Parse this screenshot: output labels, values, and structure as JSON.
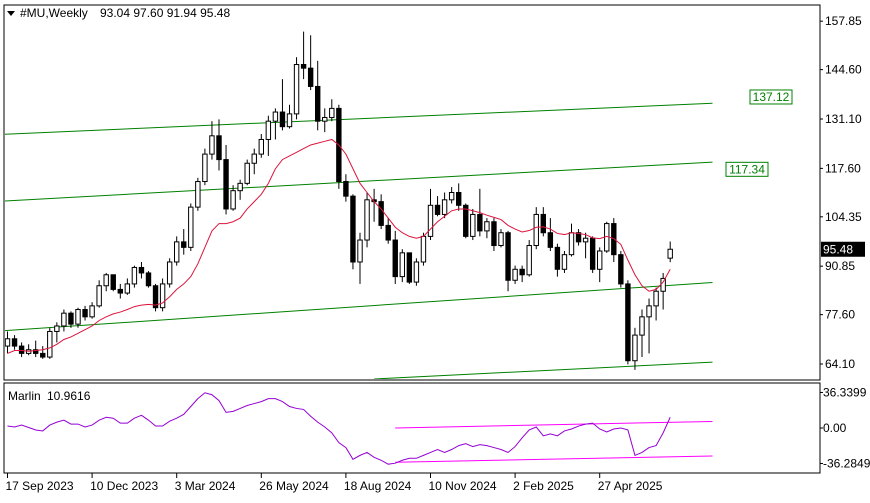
{
  "header": {
    "symbol_timeframe": "#MU,Weekly",
    "ohlc": "93.04 97.60 91.94 95.48"
  },
  "indicator": {
    "name": "Marlin",
    "value": "10.9616"
  },
  "colors": {
    "background": "#ffffff",
    "frame": "#000000",
    "candle": "#000000",
    "moving_average": "#dc143c",
    "channel": "#008000",
    "oscillator": "#9400d3",
    "oscillator_channel": "#ff00ff",
    "price_label_bg": "#000000",
    "price_label_text": "#ffffff",
    "level_label": "#008000"
  },
  "chart_data": [
    {
      "type": "candlestick",
      "title": "#MU,Weekly",
      "y_ticks": [
        "157.85",
        "144.60",
        "131.10",
        "117.60",
        "104.35",
        "90.85",
        "77.60",
        "64.10"
      ],
      "ylim": [
        60.0,
        162.0
      ],
      "x_ticks": [
        {
          "label": "17 Sep 2023",
          "index": 0
        },
        {
          "label": "10 Dec 2023",
          "index": 12
        },
        {
          "label": "3 Mar 2024",
          "index": 24
        },
        {
          "label": "26 May 2024",
          "index": 36
        },
        {
          "label": "18 Aug 2024",
          "index": 48
        },
        {
          "label": "10 Nov 2024",
          "index": 60
        },
        {
          "label": "2 Feb 2025",
          "index": 72
        },
        {
          "label": "27 Apr 2025",
          "index": 84
        }
      ],
      "current_price": "95.48",
      "level_labels": [
        "137.12",
        "117.34"
      ],
      "candles": [
        [
          69.0,
          73.0,
          67.0,
          71.0
        ],
        [
          71.0,
          72.0,
          68.0,
          69.0
        ],
        [
          69.0,
          70.0,
          66.0,
          67.0
        ],
        [
          67.0,
          69.5,
          66.5,
          68.0
        ],
        [
          68.0,
          70.5,
          66.0,
          67.0
        ],
        [
          67.0,
          69.0,
          65.5,
          66.0
        ],
        [
          66.0,
          74.0,
          65.5,
          73.0
        ],
        [
          73.0,
          75.5,
          70.0,
          74.5
        ],
        [
          74.5,
          79.0,
          73.0,
          78.0
        ],
        [
          78.0,
          78.5,
          74.0,
          75.0
        ],
        [
          75.0,
          79.5,
          74.0,
          79.0
        ],
        [
          79.0,
          80.0,
          76.0,
          77.0
        ],
        [
          77.0,
          81.0,
          76.5,
          80.0
        ],
        [
          80.0,
          87.0,
          79.5,
          85.5
        ],
        [
          85.5,
          89.0,
          84.0,
          88.5
        ],
        [
          88.5,
          88.5,
          84.0,
          84.5
        ],
        [
          84.5,
          86.0,
          82.0,
          83.5
        ],
        [
          83.5,
          87.5,
          83.0,
          86.0
        ],
        [
          86.0,
          91.0,
          85.0,
          90.5
        ],
        [
          90.5,
          92.0,
          87.5,
          89.0
        ],
        [
          89.0,
          89.5,
          85.0,
          85.5
        ],
        [
          85.5,
          86.0,
          78.5,
          79.5
        ],
        [
          79.5,
          87.5,
          78.5,
          86.0
        ],
        [
          86.0,
          93.0,
          85.0,
          92.0
        ],
        [
          92.0,
          99.0,
          91.0,
          97.5
        ],
        [
          97.5,
          101.0,
          94.0,
          96.0
        ],
        [
          96.0,
          108.0,
          95.0,
          107.0
        ],
        [
          107.0,
          115.0,
          106.0,
          114.0
        ],
        [
          114.0,
          123.0,
          113.0,
          121.5
        ],
        [
          121.5,
          130.5,
          120.0,
          126.5
        ],
        [
          126.5,
          131.0,
          117.0,
          120.0
        ],
        [
          120.0,
          124.0,
          105.0,
          106.5
        ],
        [
          106.5,
          113.0,
          106.0,
          111.5
        ],
        [
          111.5,
          114.5,
          109.0,
          113.5
        ],
        [
          113.5,
          120.0,
          113.0,
          119.0
        ],
        [
          119.0,
          123.0,
          116.0,
          121.5
        ],
        [
          121.5,
          127.0,
          120.5,
          125.5
        ],
        [
          125.5,
          132.0,
          121.0,
          130.5
        ],
        [
          130.5,
          134.0,
          125.5,
          133.0
        ],
        [
          133.0,
          142.0,
          128.0,
          129.0
        ],
        [
          129.0,
          135.0,
          128.5,
          132.5
        ],
        [
          132.5,
          148.0,
          131.0,
          146.0
        ],
        [
          146.0,
          155.0,
          142.0,
          145.0
        ],
        [
          145.0,
          154.0,
          139.0,
          140.0
        ],
        [
          140.0,
          147.0,
          128.0,
          130.5
        ],
        [
          130.5,
          134.0,
          127.5,
          131.5
        ],
        [
          131.5,
          136.5,
          130.5,
          134.0
        ],
        [
          134.0,
          135.0,
          112.0,
          114.0
        ],
        [
          114.0,
          116.0,
          108.5,
          110.0
        ],
        [
          110.0,
          110.5,
          90.0,
          92.0
        ],
        [
          92.0,
          100.0,
          86.0,
          98.0
        ],
        [
          98.0,
          111.0,
          96.0,
          109.0
        ],
        [
          109.0,
          112.0,
          103.0,
          108.5
        ],
        [
          108.5,
          110.5,
          101.0,
          102.0
        ],
        [
          102.0,
          104.0,
          97.0,
          98.0
        ],
        [
          98.0,
          100.5,
          86.0,
          88.0
        ],
        [
          88.0,
          95.5,
          86.5,
          94.5
        ],
        [
          94.5,
          94.5,
          86.0,
          86.5
        ],
        [
          86.5,
          93.0,
          85.5,
          92.0
        ],
        [
          92.0,
          100.0,
          91.0,
          99.0
        ],
        [
          99.0,
          112.0,
          98.0,
          107.5
        ],
        [
          107.5,
          110.0,
          104.5,
          105.0
        ],
        [
          105.0,
          111.0,
          104.0,
          109.0
        ],
        [
          109.0,
          112.5,
          108.0,
          111.0
        ],
        [
          111.0,
          113.5,
          106.0,
          107.5
        ],
        [
          107.5,
          108.0,
          98.5,
          99.0
        ],
        [
          99.0,
          106.5,
          98.0,
          105.0
        ],
        [
          105.0,
          112.0,
          99.0,
          100.5
        ],
        [
          100.5,
          104.0,
          98.5,
          103.0
        ],
        [
          103.0,
          104.0,
          95.0,
          96.5
        ],
        [
          96.5,
          101.0,
          96.0,
          100.0
        ],
        [
          100.0,
          100.5,
          84.0,
          87.0
        ],
        [
          87.0,
          91.0,
          86.0,
          90.0
        ],
        [
          90.0,
          91.0,
          86.5,
          88.5
        ],
        [
          88.5,
          98.0,
          88.0,
          96.5
        ],
        [
          96.5,
          107.0,
          95.5,
          105.0
        ],
        [
          105.0,
          107.0,
          99.0,
          100.0
        ],
        [
          100.0,
          104.0,
          95.0,
          96.0
        ],
        [
          96.0,
          97.0,
          88.0,
          90.0
        ],
        [
          90.0,
          95.0,
          89.0,
          94.0
        ],
        [
          94.0,
          102.5,
          93.5,
          100.0
        ],
        [
          100.0,
          101.0,
          96.5,
          97.5
        ],
        [
          97.5,
          100.0,
          93.0,
          98.5
        ],
        [
          98.5,
          99.0,
          89.0,
          90.0
        ],
        [
          90.0,
          96.0,
          86.5,
          95.0
        ],
        [
          95.0,
          103.0,
          94.5,
          102.5
        ],
        [
          102.5,
          104.0,
          92.0,
          94.0
        ],
        [
          94.0,
          95.0,
          85.0,
          86.0
        ],
        [
          86.0,
          87.0,
          64.0,
          65.0
        ],
        [
          65.0,
          74.0,
          62.5,
          72.0
        ],
        [
          72.0,
          79.0,
          66.0,
          77.0
        ],
        [
          77.0,
          82.0,
          67.0,
          80.0
        ],
        [
          80.0,
          85.0,
          76.0,
          84.0
        ],
        [
          84.0,
          89.0,
          79.0,
          87.5
        ],
        [
          93.04,
          97.6,
          91.94,
          95.48
        ]
      ],
      "moving_average": [
        67.0,
        67.8,
        67.8,
        67.6,
        67.8,
        68.0,
        68.5,
        69.5,
        70.8,
        71.5,
        72.5,
        73.5,
        74.5,
        76.0,
        77.0,
        77.8,
        78.3,
        79.0,
        79.8,
        80.2,
        80.4,
        80.2,
        80.8,
        82.5,
        84.5,
        86.0,
        88.0,
        91.5,
        96.0,
        100.5,
        102.5,
        102.5,
        103.0,
        104.0,
        106.5,
        108.5,
        110.5,
        113.5,
        117.5,
        120.0,
        121.0,
        122.0,
        123.0,
        124.0,
        124.5,
        125.0,
        125.5,
        124.0,
        121.5,
        117.5,
        113.5,
        111.0,
        108.5,
        106.5,
        104.0,
        101.5,
        100.0,
        99.0,
        98.5,
        99.0,
        101.0,
        103.0,
        104.5,
        106.0,
        106.5,
        106.5,
        106.0,
        105.5,
        104.8,
        104.2,
        103.6,
        102.0,
        101.0,
        100.2,
        100.6,
        101.5,
        101.6,
        101.0,
        99.8,
        99.5,
        100.0,
        99.8,
        99.5,
        98.6,
        98.4,
        99.0,
        98.4,
        96.8,
        92.5,
        88.5,
        85.5,
        84.0,
        84.5,
        86.5,
        90.0
      ],
      "channel_lines": [
        [
          {
            "x": -2,
            "y": 126.8
          },
          {
            "x": 100,
            "y": 135.4
          }
        ],
        [
          {
            "x": -2,
            "y": 108.5
          },
          {
            "x": 100,
            "y": 119.3
          }
        ],
        [
          {
            "x": -2,
            "y": 73.0
          },
          {
            "x": 100,
            "y": 86.4
          }
        ],
        [
          {
            "x": 52,
            "y": 60.0
          },
          {
            "x": 100,
            "y": 64.6
          }
        ]
      ]
    },
    {
      "type": "line",
      "title": "Marlin 10.9616",
      "y_ticks": [
        "36.3399",
        "0.00",
        "-36.2849"
      ],
      "ylim": [
        -45.0,
        45.0
      ],
      "values": [
        2.0,
        1.0,
        3.0,
        0.5,
        -2.0,
        -3.0,
        3.0,
        6.0,
        8.0,
        4.0,
        4.0,
        1.0,
        3.0,
        8.0,
        11.0,
        10.0,
        5.0,
        5.0,
        10.0,
        13.0,
        8.0,
        2.0,
        2.0,
        7.0,
        10.0,
        14.0,
        22.0,
        30.0,
        36.0,
        34.0,
        28.0,
        16.0,
        17.0,
        20.0,
        23.0,
        25.0,
        27.0,
        30.0,
        30.0,
        27.0,
        22.0,
        20.0,
        19.0,
        12.0,
        6.0,
        1.0,
        -5.0,
        -15.0,
        -20.0,
        -32.0,
        -28.0,
        -25.0,
        -30.0,
        -33.0,
        -37.0,
        -36.0,
        -33.0,
        -31.0,
        -31.0,
        -28.0,
        -25.0,
        -22.0,
        -25.0,
        -22.0,
        -18.0,
        -16.0,
        -19.0,
        -17.0,
        -18.0,
        -20.0,
        -22.0,
        -25.0,
        -19.0,
        -10.0,
        -2.0,
        1.0,
        -8.0,
        -6.0,
        -8.0,
        -3.0,
        -1.0,
        2.0,
        4.0,
        5.0,
        -1.0,
        -4.0,
        -1.0,
        0.0,
        -2.0,
        -28.0,
        -25.0,
        -20.0,
        -18.0,
        -5.0,
        11.0
      ],
      "channel_lines": [
        [
          {
            "x": 55,
            "y": 0.0
          },
          {
            "x": 100,
            "y": 6.7
          }
        ],
        [
          {
            "x": 55,
            "y": -35.0
          },
          {
            "x": 100,
            "y": -28.6
          }
        ]
      ]
    }
  ]
}
